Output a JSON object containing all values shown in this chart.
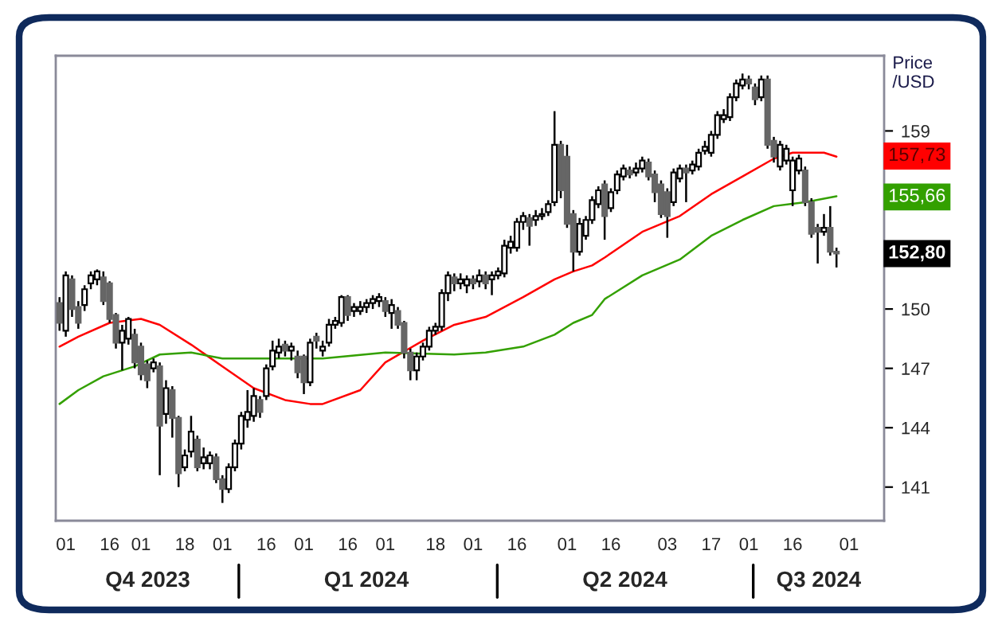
{
  "chart_data": {
    "type": "candlestick",
    "ylabel": "Price\n/USD",
    "colors": [
      "#666666",
      "#ffffff",
      "#666666",
      "#666666",
      "#ffffff",
      "#ffffff",
      "#ffffff",
      "#666666",
      "#666666",
      "#666666",
      "#ffffff",
      "#ffffff",
      "#666666",
      "#666666",
      "#666666",
      "#ffffff",
      "#666666",
      "#ffffff",
      "#666666",
      "#666666",
      "#ffffff",
      "#ffffff",
      "#666666",
      "#ffffff",
      "#ffffff",
      "#666666",
      "#666666",
      "#ffffff",
      "#ffffff",
      "#ffffff",
      "#ffffff",
      "#ffffff",
      "#666666",
      "#ffffff",
      "#ffffff",
      "#ffffff",
      "#666666",
      "#ffffff",
      "#666666",
      "#666666",
      "#ffffff",
      "#666666",
      "#ffffff",
      "#ffffff",
      "#ffffff",
      "#ffffff",
      "#666666",
      "#ffffff",
      "#ffffff",
      "#ffffff",
      "#ffffff",
      "#ffffff",
      "#666666",
      "#ffffff",
      "#666666",
      "#666666",
      "#666666",
      "#ffffff",
      "#ffffff",
      "#ffffff",
      "#ffffff",
      "#ffffff",
      "#ffffff",
      "#666666",
      "#ffffff",
      "#ffffff",
      "#666666",
      "#ffffff",
      "#666666",
      "#ffffff",
      "#ffffff",
      "#ffffff",
      "#ffffff",
      "#ffffff",
      "#ffffff",
      "#666666",
      "#ffffff",
      "#ffffff",
      "#ffffff",
      "#ffffff",
      "#666666",
      "#666666",
      "#666666",
      "#ffffff",
      "#ffffff",
      "#ffffff",
      "#ffffff",
      "#666666",
      "#ffffff",
      "#ffffff",
      "#ffffff",
      "#666666",
      "#ffffff",
      "#ffffff",
      "#666666",
      "#666666",
      "#666666",
      "#666666",
      "#ffffff",
      "#ffffff",
      "#666666",
      "#ffffff",
      "#ffffff",
      "#ffffff",
      "#ffffff",
      "#ffffff",
      "#ffffff",
      "#ffffff",
      "#ffffff",
      "#ffffff",
      "#666666",
      "#666666",
      "#ffffff",
      "#666666",
      "#666666",
      "#ffffff",
      "#ffffff",
      "#ffffff",
      "#ffffff",
      "#666666",
      "#666666",
      "#666666",
      "#ffffff",
      "#666666",
      "#666666",
      null,
      null,
      null,
      null,
      null,
      null,
      null
    ],
    "categories": [
      null,
      "01",
      null,
      null,
      null,
      null,
      null,
      null,
      "16",
      null,
      null,
      null,
      null,
      "01",
      null,
      null,
      null,
      null,
      null,
      null,
      "18",
      null,
      null,
      null,
      null,
      null,
      "01",
      null,
      null,
      null,
      null,
      null,
      null,
      "16",
      null,
      null,
      null,
      null,
      null,
      "01",
      null,
      null,
      null,
      null,
      null,
      null,
      "16",
      null,
      null,
      null,
      null,
      null,
      "01",
      null,
      null,
      null,
      null,
      null,
      null,
      null,
      "18",
      null,
      null,
      null,
      null,
      null,
      "01",
      null,
      null,
      null,
      null,
      null,
      null,
      "16",
      null,
      null,
      null,
      null,
      null,
      null,
      null,
      "01",
      null,
      null,
      null,
      null,
      null,
      null,
      "16",
      null,
      null,
      null,
      null,
      null,
      null,
      null,
      null,
      "03",
      null,
      null,
      null,
      null,
      null,
      null,
      "17",
      null,
      null,
      null,
      null,
      null,
      "01",
      null,
      null,
      null,
      null,
      null,
      null,
      "16",
      null,
      null,
      null,
      null,
      null,
      null,
      null,
      null,
      "01",
      null,
      null,
      null,
      null,
      null
    ],
    "ohlc": [
      [
        150.3,
        150.6,
        148.9,
        149.3
      ],
      [
        148.9,
        151.9,
        148.6,
        151.7
      ],
      [
        151.5,
        151.7,
        149.6,
        150.0
      ],
      [
        150.1,
        150.4,
        149.0,
        149.3
      ],
      [
        150.2,
        151.2,
        149.9,
        151.0
      ],
      [
        151.3,
        151.9,
        151.0,
        151.7
      ],
      [
        151.5,
        152.0,
        151.2,
        151.9
      ],
      [
        151.6,
        151.9,
        150.2,
        150.4
      ],
      [
        151.3,
        151.4,
        149.3,
        149.5
      ],
      [
        149.7,
        149.8,
        148.0,
        148.3
      ],
      [
        148.3,
        149.2,
        146.9,
        148.9
      ],
      [
        148.5,
        149.6,
        148.2,
        149.5
      ],
      [
        148.7,
        149.0,
        147.0,
        147.3
      ],
      [
        148.1,
        148.3,
        146.4,
        146.7
      ],
      [
        147.2,
        147.4,
        146.0,
        146.4
      ],
      [
        147.0,
        147.5,
        146.8,
        147.3
      ],
      [
        147.1,
        147.3,
        141.6,
        144.1
      ],
      [
        144.7,
        146.4,
        144.2,
        146.0
      ],
      [
        145.9,
        146.1,
        143.5,
        144.5
      ],
      [
        144.5,
        144.6,
        141.0,
        141.7
      ],
      [
        142.0,
        142.9,
        141.8,
        142.6
      ],
      [
        142.8,
        144.6,
        142.5,
        143.8
      ],
      [
        143.4,
        143.6,
        141.8,
        142.0
      ],
      [
        142.2,
        143.0,
        141.9,
        142.5
      ],
      [
        142.2,
        142.8,
        141.9,
        142.6
      ],
      [
        142.5,
        142.7,
        141.2,
        141.4
      ],
      [
        141.4,
        141.6,
        140.2,
        140.9
      ],
      [
        140.9,
        142.2,
        140.7,
        142.0
      ],
      [
        142.0,
        143.4,
        141.8,
        143.2
      ],
      [
        143.2,
        144.8,
        142.9,
        144.6
      ],
      [
        144.4,
        145.9,
        144.0,
        144.8
      ],
      [
        144.6,
        146.0,
        144.3,
        145.6
      ],
      [
        145.4,
        145.6,
        144.5,
        144.8
      ],
      [
        145.6,
        147.2,
        145.4,
        147.0
      ],
      [
        147.1,
        148.4,
        146.9,
        147.9
      ],
      [
        147.8,
        148.5,
        147.5,
        148.1
      ],
      [
        148.2,
        148.4,
        147.6,
        147.9
      ],
      [
        147.9,
        148.3,
        147.4,
        148.1
      ],
      [
        147.6,
        147.9,
        146.5,
        146.8
      ],
      [
        147.6,
        147.7,
        145.7,
        146.3
      ],
      [
        146.3,
        148.5,
        146.1,
        148.3
      ],
      [
        148.6,
        148.8,
        148.0,
        148.4
      ],
      [
        147.9,
        148.4,
        147.6,
        148.1
      ],
      [
        148.3,
        149.5,
        148.1,
        149.2
      ],
      [
        149.2,
        149.6,
        149.0,
        149.4
      ],
      [
        149.3,
        150.7,
        149.1,
        150.6
      ],
      [
        150.6,
        150.7,
        149.4,
        149.7
      ],
      [
        149.9,
        150.3,
        149.6,
        150.1
      ],
      [
        149.9,
        150.4,
        149.7,
        150.1
      ],
      [
        150.1,
        150.5,
        149.8,
        150.3
      ],
      [
        150.3,
        150.7,
        150.0,
        150.5
      ],
      [
        150.4,
        150.8,
        150.1,
        150.6
      ],
      [
        150.4,
        150.6,
        149.6,
        149.9
      ],
      [
        149.8,
        150.5,
        149.0,
        150.2
      ],
      [
        149.9,
        150.1,
        149.0,
        149.2
      ],
      [
        149.3,
        149.4,
        147.5,
        147.8
      ],
      [
        147.8,
        148.0,
        146.4,
        146.9
      ],
      [
        146.9,
        147.8,
        146.4,
        147.6
      ],
      [
        147.6,
        148.3,
        147.4,
        148.1
      ],
      [
        148.1,
        149.1,
        147.9,
        148.9
      ],
      [
        148.9,
        149.3,
        148.7,
        149.1
      ],
      [
        149.1,
        151.0,
        148.9,
        150.8
      ],
      [
        150.8,
        151.9,
        150.4,
        151.7
      ],
      [
        151.6,
        151.8,
        150.9,
        151.3
      ],
      [
        151.3,
        151.8,
        151.0,
        151.5
      ],
      [
        151.2,
        151.7,
        150.8,
        151.5
      ],
      [
        151.5,
        151.7,
        151.0,
        151.3
      ],
      [
        151.4,
        152.0,
        151.1,
        151.7
      ],
      [
        151.7,
        151.9,
        151.0,
        151.3
      ],
      [
        151.5,
        151.9,
        150.7,
        151.7
      ],
      [
        151.7,
        152.1,
        151.5,
        151.9
      ],
      [
        151.8,
        153.5,
        151.6,
        153.2
      ],
      [
        153.1,
        153.7,
        152.8,
        153.4
      ],
      [
        153.1,
        154.6,
        152.9,
        154.4
      ],
      [
        154.4,
        154.9,
        154.0,
        154.7
      ],
      [
        154.6,
        154.8,
        153.2,
        154.2
      ],
      [
        154.5,
        155.0,
        154.2,
        154.7
      ],
      [
        154.7,
        155.1,
        154.5,
        154.8
      ],
      [
        154.9,
        155.5,
        154.7,
        155.3
      ],
      [
        155.4,
        160.0,
        155.2,
        158.3
      ],
      [
        158.3,
        158.5,
        155.6,
        156.0
      ],
      [
        157.7,
        158.3,
        154.1,
        154.3
      ],
      [
        154.8,
        155.0,
        151.9,
        152.9
      ],
      [
        152.9,
        154.6,
        152.7,
        154.3
      ],
      [
        153.7,
        154.7,
        153.5,
        154.5
      ],
      [
        154.5,
        155.7,
        154.3,
        155.5
      ],
      [
        155.3,
        156.2,
        155.1,
        156.0
      ],
      [
        156.3,
        156.5,
        153.5,
        154.7
      ],
      [
        155.1,
        156.1,
        154.9,
        155.9
      ],
      [
        156.0,
        157.0,
        155.8,
        156.8
      ],
      [
        156.7,
        157.3,
        156.5,
        157.1
      ],
      [
        157.0,
        157.2,
        156.6,
        156.8
      ],
      [
        156.9,
        157.4,
        156.7,
        157.1
      ],
      [
        157.1,
        157.7,
        156.9,
        157.5
      ],
      [
        157.4,
        157.6,
        156.5,
        156.7
      ],
      [
        156.8,
        157.0,
        155.4,
        155.9
      ],
      [
        156.3,
        156.5,
        154.6,
        154.8
      ],
      [
        155.9,
        156.1,
        153.6,
        154.7
      ],
      [
        155.4,
        157.1,
        155.2,
        156.9
      ],
      [
        156.6,
        157.3,
        156.4,
        157.1
      ],
      [
        157.1,
        157.3,
        155.4,
        156.9
      ],
      [
        157.0,
        157.5,
        156.8,
        157.3
      ],
      [
        157.2,
        158.1,
        157.0,
        157.9
      ],
      [
        158.0,
        158.5,
        157.8,
        158.2
      ],
      [
        157.9,
        159.0,
        157.7,
        158.8
      ],
      [
        158.8,
        160.0,
        158.6,
        159.8
      ],
      [
        159.6,
        160.1,
        159.4,
        159.8
      ],
      [
        159.7,
        160.9,
        159.5,
        160.7
      ],
      [
        160.7,
        161.6,
        160.5,
        161.4
      ],
      [
        161.3,
        161.9,
        161.1,
        161.6
      ],
      [
        161.6,
        161.8,
        161.1,
        161.4
      ],
      [
        161.2,
        161.4,
        160.3,
        160.6
      ],
      [
        160.7,
        161.8,
        160.5,
        161.6
      ],
      [
        161.6,
        161.8,
        158.1,
        158.3
      ],
      [
        158.5,
        158.7,
        157.4,
        157.7
      ],
      [
        157.2,
        158.5,
        157.0,
        158.3
      ],
      [
        157.5,
        158.3,
        157.3,
        158.1
      ],
      [
        156.0,
        157.7,
        155.2,
        157.5
      ],
      [
        157.0,
        157.8,
        156.8,
        157.6
      ],
      [
        157.0,
        157.2,
        155.2,
        155.4
      ],
      [
        155.4,
        155.6,
        153.6,
        153.8
      ],
      [
        154.1,
        154.3,
        152.3,
        153.9
      ],
      [
        153.9,
        154.8,
        153.7,
        154.1
      ],
      [
        154.1,
        155.2,
        152.7,
        152.9
      ],
      [
        152.9,
        153.1,
        152.1,
        152.8
      ],
      null,
      null,
      null,
      null,
      null,
      null,
      null
    ],
    "series": [
      {
        "type": "line",
        "color": "#ff0000",
        "values": [
          148.1,
          null,
          null,
          148.6,
          null,
          null,
          null,
          null,
          149.3,
          null,
          null,
          null,
          null,
          149.5,
          null,
          null,
          149.2,
          null,
          null,
          null,
          null,
          148.2,
          null,
          null,
          null,
          null,
          147.1,
          null,
          null,
          null,
          null,
          146.0,
          null,
          null,
          null,
          null,
          145.4,
          null,
          null,
          null,
          145.2,
          null,
          145.2,
          null,
          null,
          null,
          null,
          null,
          145.9,
          null,
          null,
          null,
          147.3,
          null,
          null,
          null,
          null,
          null,
          148.4,
          null,
          null,
          null,
          null,
          149.2,
          null,
          null,
          null,
          null,
          149.6,
          null,
          null,
          null,
          null,
          null,
          150.6,
          null,
          null,
          null,
          null,
          151.5,
          null,
          null,
          151.9,
          null,
          null,
          152.2,
          null,
          152.6,
          null,
          null,
          null,
          null,
          null,
          153.9,
          null,
          null,
          null,
          null,
          null,
          154.7,
          null,
          null,
          null,
          null,
          155.8,
          null,
          null,
          null,
          null,
          156.7,
          null,
          null,
          null,
          null,
          157.6,
          null,
          null,
          157.9,
          null,
          null,
          null,
          null,
          157.9,
          null,
          157.7,
          null,
          null,
          null,
          null,
          null,
          null,
          null
        ]
      },
      {
        "type": "line",
        "color": "#33a000",
        "values": [
          145.2,
          null,
          null,
          145.9,
          null,
          null,
          null,
          146.6,
          null,
          null,
          null,
          null,
          147.1,
          null,
          null,
          null,
          147.7,
          null,
          null,
          null,
          null,
          147.8,
          null,
          null,
          null,
          null,
          147.5,
          null,
          null,
          null,
          null,
          147.5,
          null,
          null,
          null,
          null,
          null,
          null,
          null,
          null,
          147.5,
          null,
          147.5,
          null,
          null,
          null,
          null,
          null,
          null,
          null,
          null,
          null,
          147.8,
          null,
          null,
          null,
          null,
          null,
          null,
          null,
          null,
          null,
          null,
          147.7,
          null,
          null,
          null,
          null,
          147.8,
          null,
          null,
          null,
          null,
          null,
          148.1,
          null,
          null,
          null,
          null,
          148.7,
          null,
          null,
          149.3,
          null,
          null,
          149.7,
          null,
          150.5,
          null,
          null,
          null,
          null,
          null,
          151.7,
          null,
          null,
          null,
          null,
          null,
          152.5,
          null,
          null,
          null,
          null,
          153.7,
          null,
          null,
          null,
          null,
          154.5,
          null,
          null,
          null,
          null,
          155.2,
          null,
          null,
          null,
          null,
          155.4,
          null,
          null,
          null,
          null,
          155.7,
          null,
          null,
          null,
          null,
          null,
          null,
          null
        ]
      }
    ],
    "annotations": [
      "Q4 2023",
      "Q1 2024",
      "Q2 2024",
      "Q3 2024",
      {
        "text": "157,73",
        "y": 157.73
      },
      {
        "text": "155,66",
        "y": 155.66
      },
      {
        "text": "152,80",
        "y": 152.8
      }
    ],
    "ylim": [
      139.3,
      162.8
    ],
    "yticks": [
      141,
      144,
      147,
      150,
      159
    ],
    "grid": false,
    "legend": false
  }
}
